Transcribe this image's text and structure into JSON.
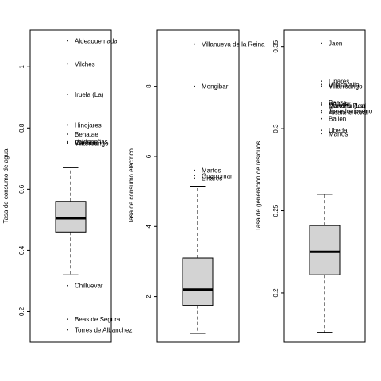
{
  "chart_data": [
    {
      "type": "box",
      "ylabel": "Tasa de consumo de agua",
      "ylim": [
        0.1,
        1.12
      ],
      "yticks": [
        0.2,
        0.4,
        0.6,
        0.8,
        1.0
      ],
      "box": {
        "whisker_low": 0.32,
        "q1": 0.46,
        "median": 0.505,
        "q3": 0.56,
        "whisker_high": 0.67
      },
      "outliers": [
        {
          "label": "Aldeaquemada",
          "value": 1.085
        },
        {
          "label": "Vilches",
          "value": 1.01
        },
        {
          "label": "Iruela (La)",
          "value": 0.91
        },
        {
          "label": "Hinojares",
          "value": 0.81
        },
        {
          "label": "Benatae",
          "value": 0.78
        },
        {
          "label": "Valdepeñas",
          "value": 0.755
        },
        {
          "label": "Canena",
          "value": 0.752
        },
        {
          "label": "Villarrodrigo",
          "value": 0.75
        },
        {
          "label": "Chilluevar",
          "value": 0.285
        },
        {
          "label": "Beas de Segura",
          "value": 0.175
        },
        {
          "label": "Torres de Albanchez",
          "value": 0.14
        }
      ]
    },
    {
      "type": "box",
      "ylabel": "Tasa de consumo eléctrico",
      "ylim": [
        0.7,
        9.6
      ],
      "yticks": [
        2,
        4,
        6,
        8
      ],
      "box": {
        "whisker_low": 0.95,
        "q1": 1.75,
        "median": 2.2,
        "q3": 3.1,
        "whisker_high": 5.15
      },
      "outliers": [
        {
          "label": "Villanueva de la Reina",
          "value": 9.2
        },
        {
          "label": "Mengibar",
          "value": 8.0
        },
        {
          "label": "Martos",
          "value": 5.6
        },
        {
          "label": "Guarroman",
          "value": 5.45
        },
        {
          "label": "Linares",
          "value": 5.38
        }
      ]
    },
    {
      "type": "box",
      "ylabel": "Tasa de generación de residuos",
      "ylim": [
        0.17,
        0.36
      ],
      "yticks": [
        0.2,
        0.25,
        0.3,
        0.35
      ],
      "box": {
        "whisker_low": 0.176,
        "q1": 0.211,
        "median": 0.225,
        "q3": 0.241,
        "whisker_high": 0.26
      },
      "outliers": [
        {
          "label": "Jaen",
          "value": 0.352
        },
        {
          "label": "Linares",
          "value": 0.329
        },
        {
          "label": "Villacarrillo",
          "value": 0.327
        },
        {
          "label": "Villarrodrigo",
          "value": 0.326
        },
        {
          "label": "Baeza",
          "value": 0.316
        },
        {
          "label": "Andújar",
          "value": 0.315
        },
        {
          "label": "Carolina (La)",
          "value": 0.314
        },
        {
          "label": "Mancha Real",
          "value": 0.314
        },
        {
          "label": "Torredonjimeno",
          "value": 0.311
        },
        {
          "label": "Alcalá la Real",
          "value": 0.31
        },
        {
          "label": "Bailen",
          "value": 0.306
        },
        {
          "label": "Ubeda",
          "value": 0.299
        },
        {
          "label": "Martos",
          "value": 0.297
        }
      ]
    }
  ]
}
